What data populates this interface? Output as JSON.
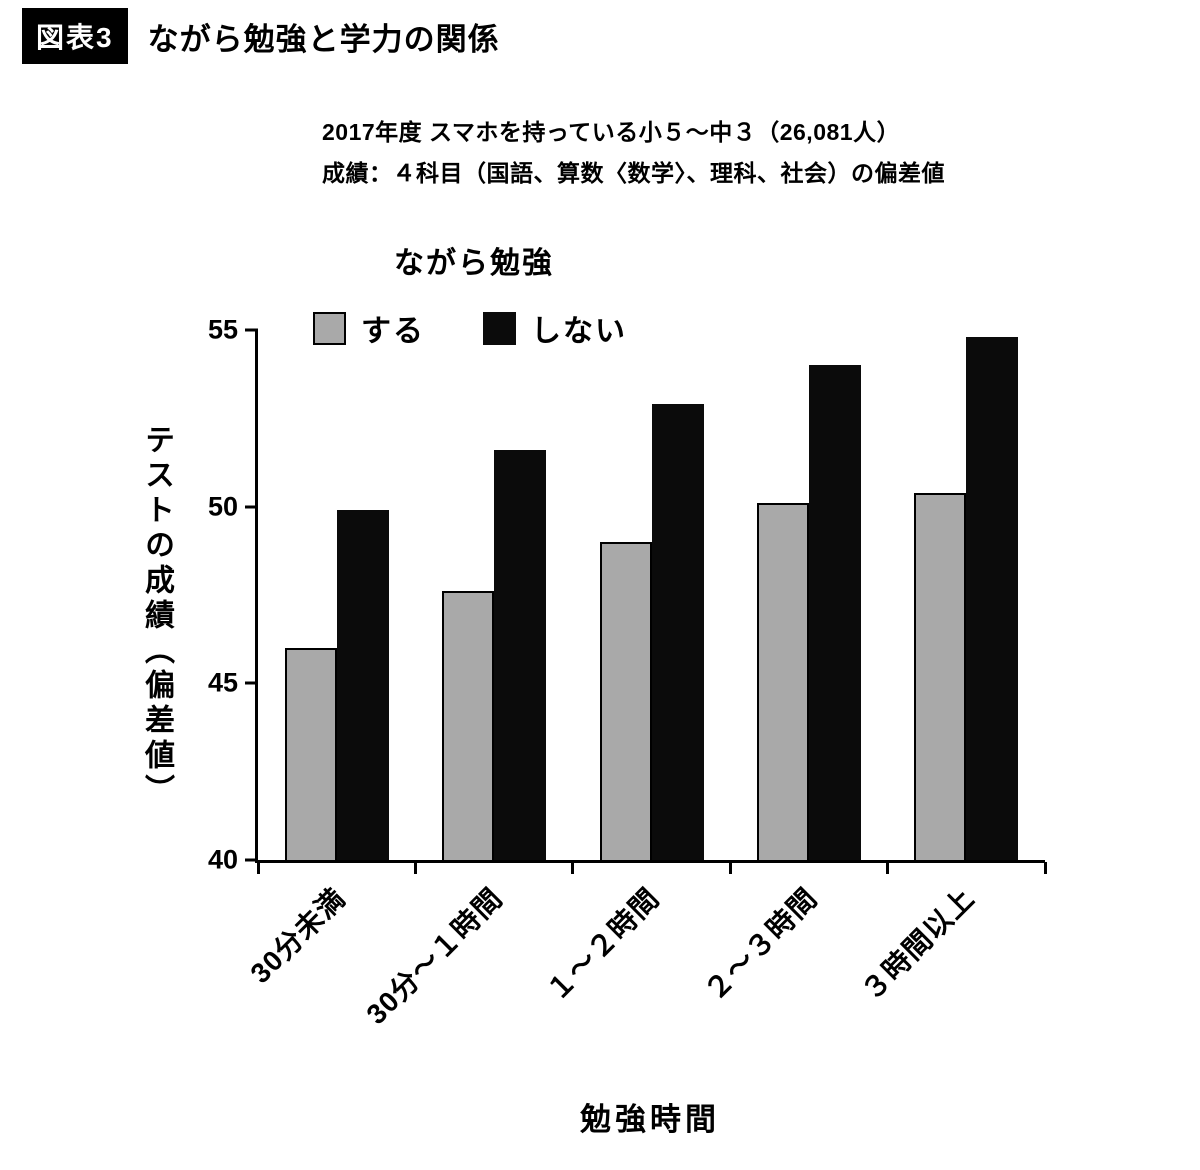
{
  "header": {
    "badge": "図表3",
    "title": "ながら勉強と学力の関係"
  },
  "subtitle": {
    "line1": "2017年度 スマホを持っている小５～中３（26,081人）",
    "line2": "成績：４科目（国語、算数〈数学〉、理科、社会）の偏差値",
    "sample_size": "26,081人",
    "year": "2017年度"
  },
  "chart_data": {
    "type": "bar",
    "legend_title": "ながら勉強",
    "legend_position": "top",
    "grid": false,
    "categories": [
      "30分未満",
      "30分～１時間",
      "１～２時間",
      "２～３時間",
      "３時間以上"
    ],
    "series": [
      {
        "name": "する",
        "key": "suru",
        "color": "#a9a9a9",
        "values": [
          46.0,
          47.6,
          49.0,
          50.1,
          50.4
        ]
      },
      {
        "name": "しない",
        "key": "shinai",
        "color": "#0b0b0b",
        "values": [
          49.9,
          51.6,
          52.9,
          54.0,
          54.8
        ]
      }
    ],
    "xlabel": "勉強時間",
    "ylabel": "テストの成績（偏差値）",
    "ylim": [
      40,
      55
    ],
    "yticks": [
      40,
      45,
      50,
      55
    ]
  },
  "colors": {
    "bar_suru": "#a9a9a9",
    "bar_shinai": "#0b0b0b",
    "axis": "#000000",
    "badge_bg": "#000000",
    "badge_text": "#ffffff",
    "background": "#ffffff"
  }
}
